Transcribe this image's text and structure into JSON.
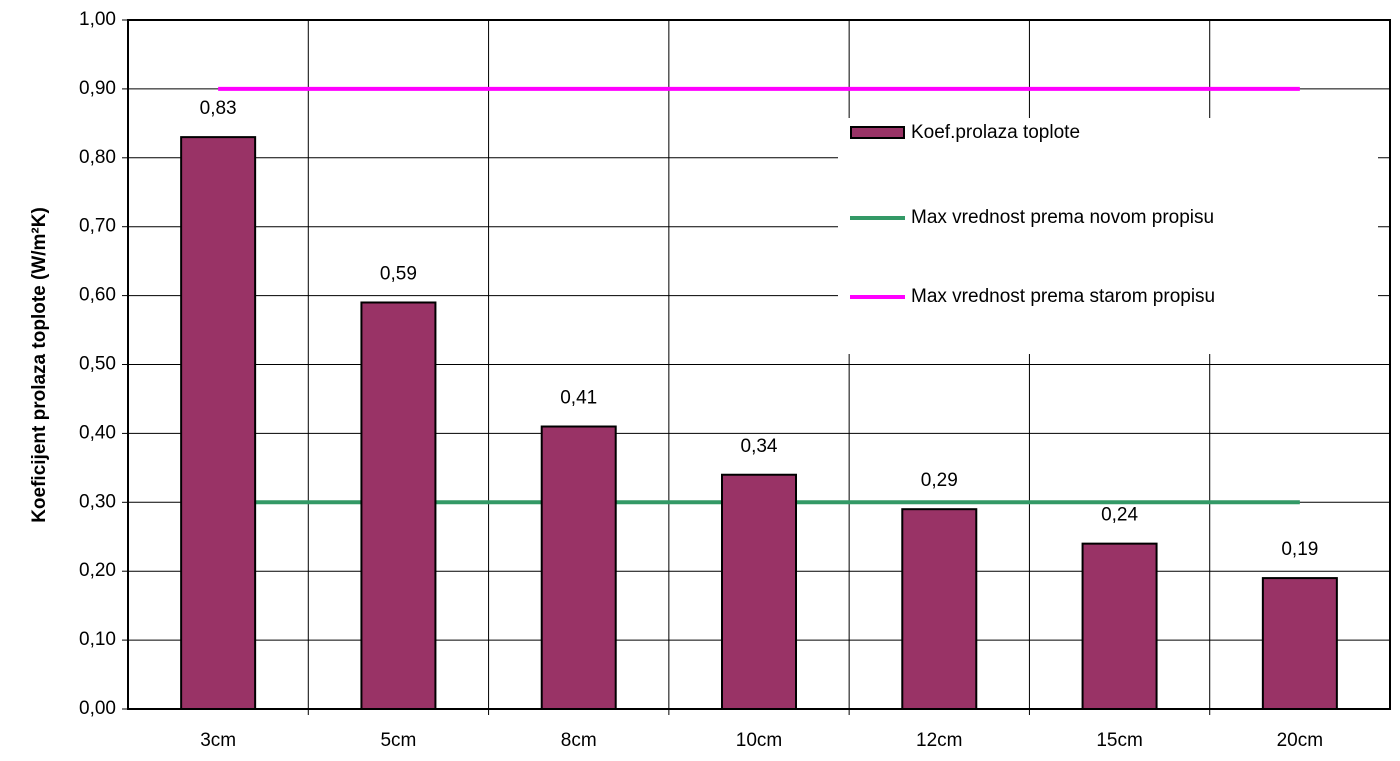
{
  "chart_data": {
    "type": "bar",
    "y_label": "Koeficijent prolaza toplote (W/m²K)",
    "categories": [
      "3cm",
      "5cm",
      "8cm",
      "10cm",
      "12cm",
      "15cm",
      "20cm"
    ],
    "series": [
      {
        "name": "Koef.prolaza toplote",
        "type": "bar",
        "color": "#993366",
        "values": [
          0.83,
          0.59,
          0.41,
          0.34,
          0.29,
          0.24,
          0.19
        ],
        "value_labels": [
          "0,83",
          "0,59",
          "0,41",
          "0,34",
          "0,29",
          "0,24",
          "0,19"
        ]
      },
      {
        "name": "Max vrednost prema novom propisu",
        "type": "line",
        "color": "#339966",
        "values": [
          0.3,
          0.3,
          0.3,
          0.3,
          0.3,
          0.3,
          0.3
        ]
      },
      {
        "name": "Max vrednost prema starom propisu",
        "type": "line",
        "color": "#ff00ff",
        "values": [
          0.9,
          0.9,
          0.9,
          0.9,
          0.9,
          0.9,
          0.9
        ]
      }
    ],
    "ylim": [
      0,
      1
    ],
    "yticks": [
      {
        "value": 0,
        "label": "0,00"
      },
      {
        "value": 0.1,
        "label": "0,10"
      },
      {
        "value": 0.2,
        "label": "0,20"
      },
      {
        "value": 0.3,
        "label": "0,30"
      },
      {
        "value": 0.4,
        "label": "0,40"
      },
      {
        "value": 0.5,
        "label": "0,50"
      },
      {
        "value": 0.6,
        "label": "0,60"
      },
      {
        "value": 0.7,
        "label": "0,70"
      },
      {
        "value": 0.8,
        "label": "0,80"
      },
      {
        "value": 0.9,
        "label": "0,90"
      },
      {
        "value": 1,
        "label": "1,00"
      }
    ],
    "grid": true,
    "legend": "right"
  }
}
